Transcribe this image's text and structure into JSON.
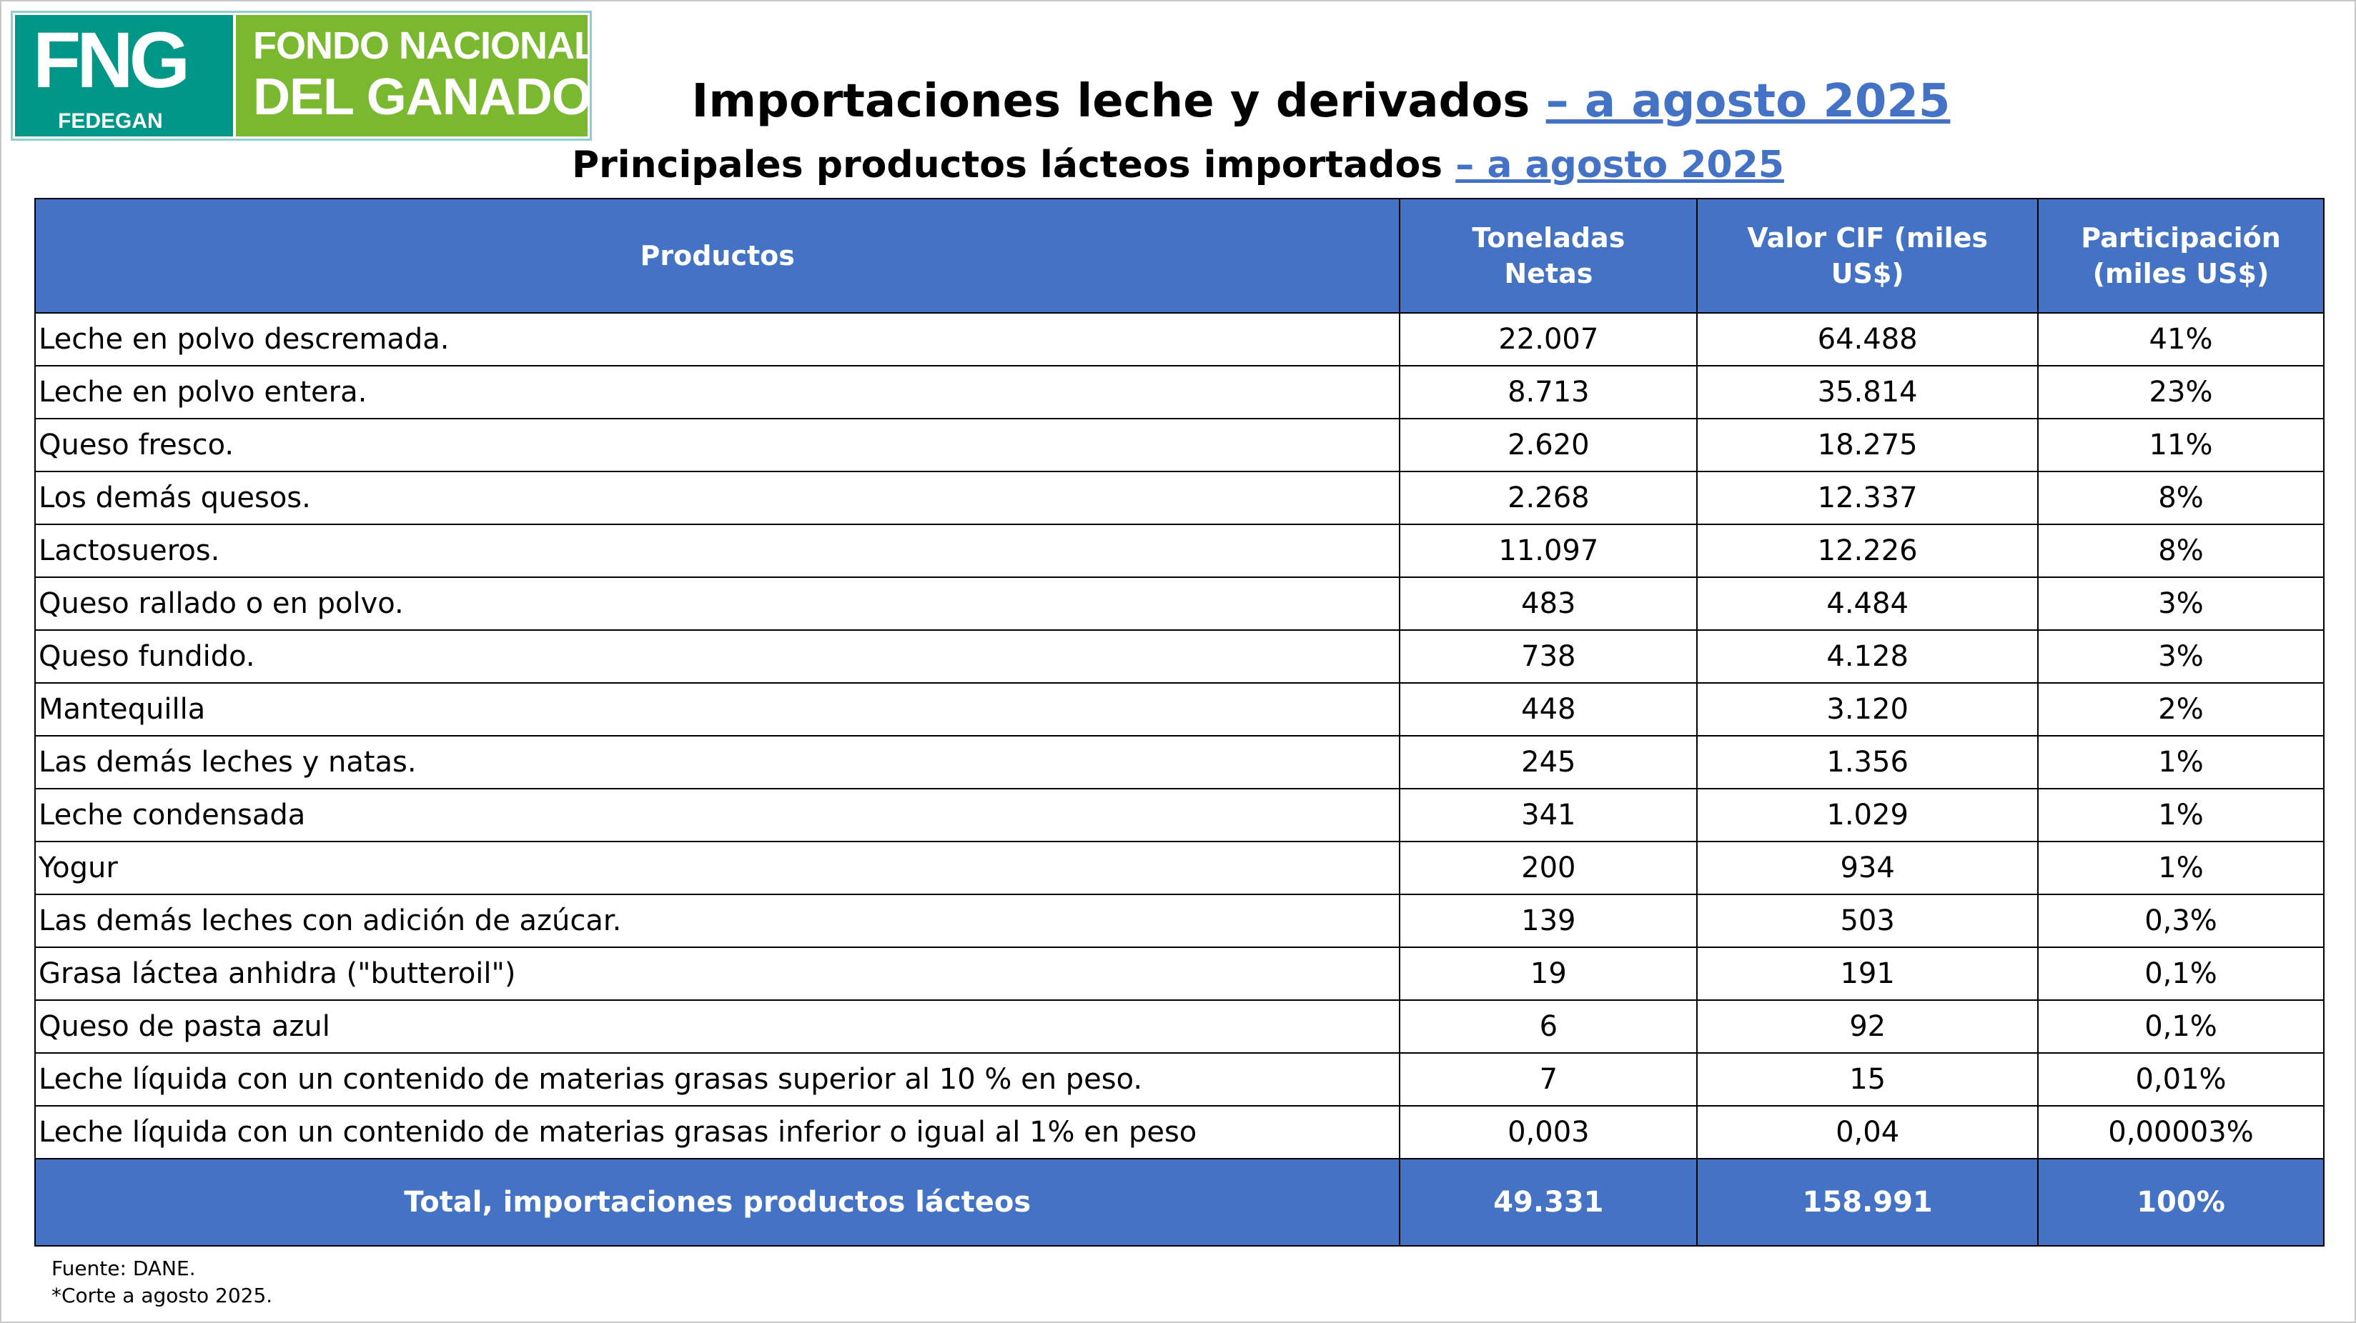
{
  "logo": {
    "mark": "FNG",
    "sub": "FEDEGAN",
    "line1": "FONDO NACIONAL",
    "line2": "DEL GANADO"
  },
  "title": {
    "main": "Importaciones leche y derivados ",
    "main_hl": "– a agosto 2025",
    "sub": "Principales productos lácteos importados ",
    "sub_hl": "– a agosto 2025"
  },
  "table": {
    "headers": [
      "Productos",
      "Toneladas Netas",
      "Valor  CIF (miles US$)",
      "Participación (miles US$)"
    ],
    "rows": [
      [
        "Leche en polvo descremada.",
        "22.007",
        "64.488",
        "41%"
      ],
      [
        "Leche en polvo entera.",
        "8.713",
        "35.814",
        "23%"
      ],
      [
        "Queso fresco.",
        "2.620",
        "18.275",
        "11%"
      ],
      [
        "Los demás quesos.",
        "2.268",
        "12.337",
        "8%"
      ],
      [
        "Lactosueros.",
        "11.097",
        "12.226",
        "8%"
      ],
      [
        "Queso rallado o en polvo.",
        "483",
        "4.484",
        "3%"
      ],
      [
        "Queso fundido.",
        "738",
        "4.128",
        "3%"
      ],
      [
        "Mantequilla",
        "448",
        "3.120",
        "2%"
      ],
      [
        "Las demás leches y natas.",
        "245",
        "1.356",
        "1%"
      ],
      [
        "Leche condensada",
        "341",
        "1.029",
        "1%"
      ],
      [
        "Yogur",
        "200",
        "934",
        "1%"
      ],
      [
        "Las demás leches con adición de azúcar.",
        "139",
        "503",
        "0,3%"
      ],
      [
        "Grasa láctea anhidra (\"butteroil\")",
        "19",
        "191",
        "0,1%"
      ],
      [
        "Queso de pasta azul",
        "6",
        "92",
        "0,1%"
      ],
      [
        "Leche líquida con un contenido de materias grasas superior al 10 % en peso.",
        "7",
        "15",
        "0,01%"
      ],
      [
        "Leche líquida con un contenido de materias grasas inferior o igual al 1% en peso",
        "0,003",
        "0,04",
        "0,00003%"
      ]
    ],
    "total": [
      "Total, importaciones productos lácteos",
      "49.331",
      "158.991",
      "100%"
    ]
  },
  "footer": {
    "source": "Fuente: DANE.",
    "note": "*Corte a agosto 2025."
  }
}
